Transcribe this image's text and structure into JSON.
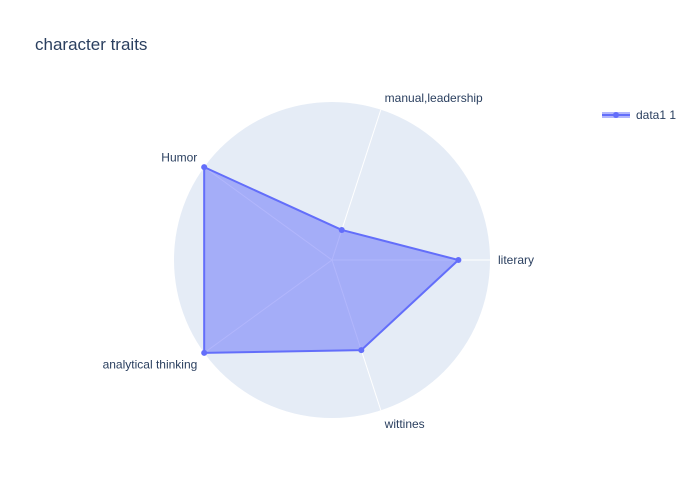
{
  "chart_data": {
    "type": "radar",
    "title": "character traits",
    "categories": [
      "literary",
      "wittines",
      "analytical thinking",
      "Humor",
      "manual,leadership"
    ],
    "series": [
      {
        "name": "data1 1",
        "values": [
          4,
          3,
          5,
          5,
          1
        ],
        "color": "#636efa",
        "fill_color": "rgba(99,110,250,0.5)"
      }
    ],
    "radial_range": [
      0,
      5
    ],
    "radial_axis_visible": false,
    "angular_start_deg": 0,
    "direction": "clockwise",
    "grid": true,
    "polar_background": "#e5ecf6",
    "legend_position": "top-right"
  }
}
